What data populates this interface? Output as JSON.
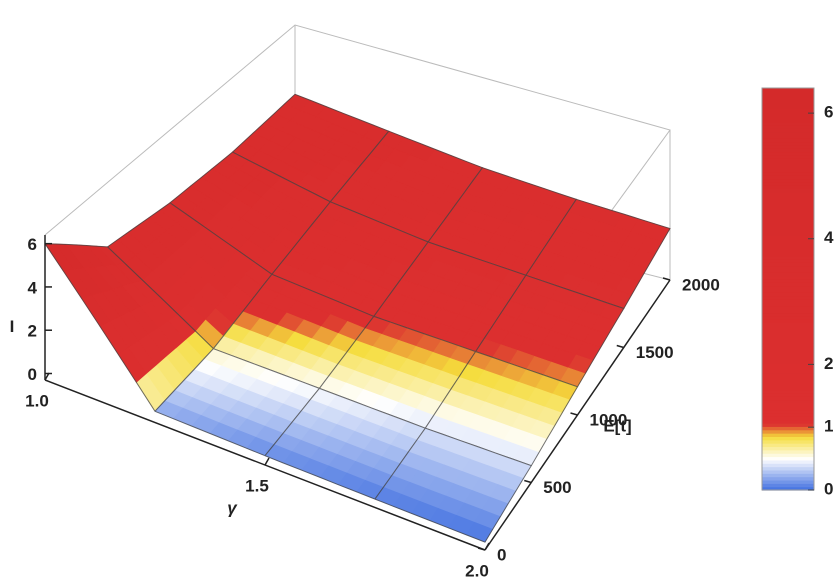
{
  "chart_data": {
    "type": "surface3d",
    "xlabel": "γ",
    "ylabel": "E[t]",
    "zlabel": "I",
    "x": [
      1,
      1.25,
      1.5,
      1.75,
      2
    ],
    "y": [
      0,
      500,
      1000,
      1500,
      2000
    ],
    "z": [
      [
        6,
        0.2,
        0.1,
        0.05,
        0.02
      ],
      [
        3.5,
        0.6,
        0.5,
        0.4,
        0.4
      ],
      [
        3.2,
        1.5,
        1.1,
        1.0,
        0.9
      ],
      [
        3.2,
        2.3,
        1.8,
        1.6,
        1.4
      ],
      [
        3.5,
        3,
        2.5,
        2.2,
        2
      ]
    ],
    "xlim": [
      1,
      2
    ],
    "ylim": [
      0,
      2000
    ],
    "zlim": [
      -0.3,
      6.4
    ],
    "xticks": [
      {
        "value": 1,
        "label": "1.0"
      },
      1.5,
      {
        "value": 2,
        "label": "2.0"
      }
    ],
    "yticks": [
      0,
      500,
      1000,
      1500,
      2000
    ],
    "zticks": [
      0,
      2,
      4,
      6
    ],
    "colorbar": {
      "lim": [
        0,
        6.4
      ],
      "ticks": [
        0,
        1,
        2,
        4,
        6
      ]
    },
    "colorscale": [
      [
        0,
        "#3f6ee0"
      ],
      [
        0.5,
        "#ffffff"
      ],
      [
        0.85,
        "#f5dc3c"
      ],
      [
        1.05,
        "#dc2f2f"
      ],
      [
        6.4,
        "#d42a2a"
      ]
    ]
  }
}
